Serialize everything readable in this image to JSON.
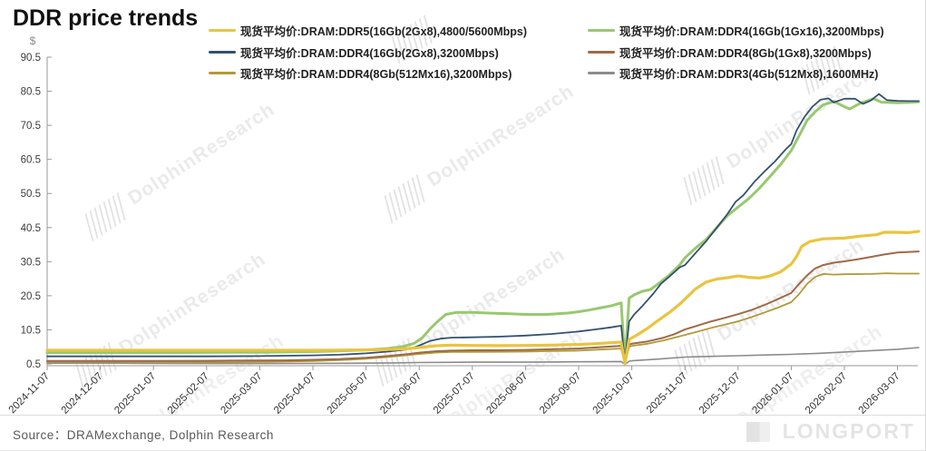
{
  "title": "DDR price trends",
  "source": "Source：DRAMexchange,  Dolphin  Research",
  "watermark": "DolphinResearch",
  "brand": "LONGPORT",
  "chart_data": {
    "type": "line",
    "title": "DDR price trends",
    "xlabel": "",
    "ylabel": "$",
    "ylim": [
      0.5,
      90.5
    ],
    "yticks": [
      0.5,
      10.5,
      20.5,
      30.5,
      40.5,
      50.5,
      60.5,
      70.5,
      80.5,
      90.5
    ],
    "grid": false,
    "legend_position": "top",
    "x_unit": "months after 2024-11-07",
    "x_tick_labels": [
      "2024-11-07",
      "2024-12-07",
      "2025-01-07",
      "2025-02-07",
      "2025-03-07",
      "2025-04-07",
      "2025-05-07",
      "2025-06-07",
      "2025-07-07",
      "2025-08-07",
      "2025-09-07",
      "2025-10-07",
      "2025-11-07",
      "2025-12-07",
      "2026-01-07",
      "2026-02-07",
      "2026-03-07"
    ],
    "series": [
      {
        "name": "现货平均价:DRAM:DDR5(16Gb(2Gx8),4800/5600Mbps)",
        "color": "#E9C43F",
        "width": 3.2,
        "points": [
          [
            0,
            4.5
          ],
          [
            1,
            4.5
          ],
          [
            2,
            4.5
          ],
          [
            3,
            4.5
          ],
          [
            4,
            4.5
          ],
          [
            5,
            4.5
          ],
          [
            5.5,
            4.55
          ],
          [
            6,
            4.6
          ],
          [
            6.5,
            4.75
          ],
          [
            6.8,
            5.0
          ],
          [
            7,
            5.3
          ],
          [
            7.3,
            5.8
          ],
          [
            7.6,
            6.0
          ],
          [
            8,
            5.9
          ],
          [
            8.5,
            5.85
          ],
          [
            9,
            5.9
          ],
          [
            9.5,
            6.0
          ],
          [
            10,
            6.2
          ],
          [
            10.4,
            6.5
          ],
          [
            10.8,
            6.9
          ],
          [
            10.87,
            0.6
          ],
          [
            10.95,
            7.7
          ],
          [
            11.1,
            9.0
          ],
          [
            11.3,
            11.0
          ],
          [
            11.5,
            13.3
          ],
          [
            11.7,
            15.5
          ],
          [
            11.9,
            18.0
          ],
          [
            12,
            19.5
          ],
          [
            12.2,
            22.5
          ],
          [
            12.4,
            24.5
          ],
          [
            12.6,
            25.4
          ],
          [
            12.8,
            25.8
          ],
          [
            13,
            26.3
          ],
          [
            13.2,
            25.9
          ],
          [
            13.4,
            25.7
          ],
          [
            13.6,
            26.3
          ],
          [
            13.8,
            27.5
          ],
          [
            14,
            29.8
          ],
          [
            14.1,
            32.0
          ],
          [
            14.2,
            35.0
          ],
          [
            14.35,
            36.4
          ],
          [
            14.6,
            37.2
          ],
          [
            15,
            37.4
          ],
          [
            15.3,
            38.0
          ],
          [
            15.6,
            38.4
          ],
          [
            15.75,
            39.1
          ],
          [
            16,
            39.1
          ],
          [
            16.2,
            39.0
          ],
          [
            16.4,
            39.4
          ]
        ]
      },
      {
        "name": "现货平均价:DRAM:DDR4(16Gb(1Gx16),3200Mbps)",
        "color": "#98C86F",
        "width": 3,
        "points": [
          [
            0,
            3.8
          ],
          [
            1,
            3.8
          ],
          [
            2,
            3.8
          ],
          [
            3,
            3.85
          ],
          [
            4,
            3.9
          ],
          [
            5,
            4.1
          ],
          [
            5.5,
            4.3
          ],
          [
            6,
            4.6
          ],
          [
            6.4,
            5.0
          ],
          [
            6.7,
            5.6
          ],
          [
            6.9,
            6.5
          ],
          [
            7.05,
            8.0
          ],
          [
            7.2,
            10.7
          ],
          [
            7.35,
            13.0
          ],
          [
            7.5,
            15.0
          ],
          [
            7.7,
            15.6
          ],
          [
            8,
            15.6
          ],
          [
            8.3,
            15.4
          ],
          [
            8.7,
            15.2
          ],
          [
            9,
            15.0
          ],
          [
            9.4,
            15.0
          ],
          [
            9.8,
            15.4
          ],
          [
            10,
            15.8
          ],
          [
            10.2,
            16.3
          ],
          [
            10.4,
            16.9
          ],
          [
            10.6,
            17.5
          ],
          [
            10.8,
            18.4
          ],
          [
            10.87,
            1.0
          ],
          [
            10.95,
            19.8
          ],
          [
            11.05,
            20.8
          ],
          [
            11.2,
            21.8
          ],
          [
            11.35,
            22.3
          ],
          [
            11.5,
            24.0
          ],
          [
            11.7,
            26.5
          ],
          [
            11.9,
            29.5
          ],
          [
            12,
            31.6
          ],
          [
            12.2,
            34.5
          ],
          [
            12.4,
            37.0
          ],
          [
            12.6,
            40.5
          ],
          [
            12.8,
            44.0
          ],
          [
            13,
            46.5
          ],
          [
            13.2,
            49.0
          ],
          [
            13.4,
            52.0
          ],
          [
            13.6,
            55.5
          ],
          [
            13.8,
            59.0
          ],
          [
            14,
            63.1
          ],
          [
            14.15,
            67.5
          ],
          [
            14.3,
            72.0
          ],
          [
            14.45,
            74.5
          ],
          [
            14.6,
            76.5
          ],
          [
            14.8,
            77.5
          ],
          [
            15,
            76.0
          ],
          [
            15.1,
            75.3
          ],
          [
            15.3,
            77.0
          ],
          [
            15.55,
            78.3
          ],
          [
            15.7,
            77.3
          ],
          [
            16,
            77.1
          ],
          [
            16.2,
            77.2
          ],
          [
            16.4,
            77.4
          ]
        ]
      },
      {
        "name": "现货平均价:DRAM:DDR4(16Gb(2Gx8),3200Mbps)",
        "color": "#33516F",
        "width": 1.8,
        "points": [
          [
            0,
            2.7
          ],
          [
            1,
            2.7
          ],
          [
            2,
            2.7
          ],
          [
            3,
            2.7
          ],
          [
            4,
            2.8
          ],
          [
            5,
            3.0
          ],
          [
            5.5,
            3.2
          ],
          [
            6,
            3.6
          ],
          [
            6.4,
            4.1
          ],
          [
            6.7,
            4.6
          ],
          [
            6.9,
            5.3
          ],
          [
            7.05,
            6.2
          ],
          [
            7.2,
            7.2
          ],
          [
            7.4,
            7.9
          ],
          [
            7.6,
            8.2
          ],
          [
            8,
            8.3
          ],
          [
            8.5,
            8.5
          ],
          [
            9,
            8.8
          ],
          [
            9.5,
            9.3
          ],
          [
            10,
            10.0
          ],
          [
            10.3,
            10.6
          ],
          [
            10.6,
            11.2
          ],
          [
            10.8,
            11.7
          ],
          [
            10.87,
            1.0
          ],
          [
            10.95,
            13.0
          ],
          [
            11.05,
            15.1
          ],
          [
            11.2,
            17.5
          ],
          [
            11.4,
            21.0
          ],
          [
            11.55,
            24.0
          ],
          [
            11.7,
            26.0
          ],
          [
            11.9,
            28.8
          ],
          [
            12,
            29.5
          ],
          [
            12.2,
            33.0
          ],
          [
            12.4,
            36.5
          ],
          [
            12.6,
            40.5
          ],
          [
            12.8,
            44.5
          ],
          [
            12.95,
            48.0
          ],
          [
            13.1,
            50.0
          ],
          [
            13.3,
            53.8
          ],
          [
            13.5,
            57.0
          ],
          [
            13.7,
            60.0
          ],
          [
            13.9,
            63.5
          ],
          [
            14,
            65.0
          ],
          [
            14.1,
            69.0
          ],
          [
            14.25,
            73.0
          ],
          [
            14.4,
            76.0
          ],
          [
            14.55,
            78.0
          ],
          [
            14.7,
            78.4
          ],
          [
            14.8,
            77.2
          ],
          [
            15,
            78.3
          ],
          [
            15.2,
            78.3
          ],
          [
            15.35,
            76.8
          ],
          [
            15.5,
            77.8
          ],
          [
            15.65,
            79.7
          ],
          [
            15.8,
            77.9
          ],
          [
            16,
            77.7
          ],
          [
            16.2,
            77.6
          ],
          [
            16.4,
            77.6
          ]
        ]
      },
      {
        "name": "现货平均价:DRAM:DDR4(8Gb(1Gx8),3200Mbps)",
        "color": "#9F6A47",
        "width": 2,
        "points": [
          [
            0,
            1.35
          ],
          [
            1,
            1.35
          ],
          [
            2,
            1.35
          ],
          [
            3,
            1.4
          ],
          [
            4,
            1.5
          ],
          [
            4.5,
            1.55
          ],
          [
            5,
            1.7
          ],
          [
            5.5,
            1.9
          ],
          [
            6,
            2.3
          ],
          [
            6.4,
            2.8
          ],
          [
            6.8,
            3.4
          ],
          [
            7,
            3.8
          ],
          [
            7.3,
            4.2
          ],
          [
            7.6,
            4.4
          ],
          [
            8,
            4.5
          ],
          [
            8.5,
            4.5
          ],
          [
            9,
            4.6
          ],
          [
            9.5,
            4.8
          ],
          [
            10,
            5.0
          ],
          [
            10.4,
            5.4
          ],
          [
            10.8,
            5.8
          ],
          [
            10.87,
            0.8
          ],
          [
            10.95,
            6.2
          ],
          [
            11,
            6.4
          ],
          [
            11.3,
            7.1
          ],
          [
            11.6,
            8.2
          ],
          [
            11.8,
            9.2
          ],
          [
            12,
            10.6
          ],
          [
            12.25,
            11.8
          ],
          [
            12.5,
            13.0
          ],
          [
            12.75,
            14.0
          ],
          [
            13,
            15.1
          ],
          [
            13.25,
            16.3
          ],
          [
            13.5,
            17.8
          ],
          [
            13.75,
            19.5
          ],
          [
            14,
            21.3
          ],
          [
            14.15,
            24.0
          ],
          [
            14.3,
            26.5
          ],
          [
            14.45,
            28.5
          ],
          [
            14.6,
            29.5
          ],
          [
            14.8,
            30.2
          ],
          [
            15,
            30.6
          ],
          [
            15.25,
            31.2
          ],
          [
            15.5,
            31.9
          ],
          [
            15.75,
            32.6
          ],
          [
            16,
            33.2
          ],
          [
            16.4,
            33.5
          ]
        ]
      },
      {
        "name": "现货平均价:DRAM:DDR4(8Gb(512Mx16),3200Mbps)",
        "color": "#AF9B3A",
        "width": 1.8,
        "points": [
          [
            0,
            1.1
          ],
          [
            1,
            1.1
          ],
          [
            2,
            1.05
          ],
          [
            3,
            1.0
          ],
          [
            3.5,
            1.0
          ],
          [
            4,
            1.1
          ],
          [
            4.5,
            1.2
          ],
          [
            5,
            1.35
          ],
          [
            5.5,
            1.6
          ],
          [
            6,
            2.0
          ],
          [
            6.4,
            2.5
          ],
          [
            6.8,
            3.1
          ],
          [
            7,
            3.4
          ],
          [
            7.3,
            3.8
          ],
          [
            7.6,
            4.0
          ],
          [
            8,
            4.0
          ],
          [
            8.5,
            4.05
          ],
          [
            9,
            4.1
          ],
          [
            9.5,
            4.25
          ],
          [
            10,
            4.4
          ],
          [
            10.4,
            4.7
          ],
          [
            10.8,
            5.0
          ],
          [
            10.87,
            0.6
          ],
          [
            10.95,
            5.5
          ],
          [
            11,
            5.8
          ],
          [
            11.3,
            6.4
          ],
          [
            11.6,
            7.4
          ],
          [
            11.8,
            8.2
          ],
          [
            12,
            9.0
          ],
          [
            12.25,
            10.0
          ],
          [
            12.5,
            11.1
          ],
          [
            12.75,
            12.0
          ],
          [
            13,
            13.0
          ],
          [
            13.25,
            14.2
          ],
          [
            13.5,
            15.6
          ],
          [
            13.75,
            17.0
          ],
          [
            14,
            18.6
          ],
          [
            14.15,
            21.0
          ],
          [
            14.3,
            24.0
          ],
          [
            14.45,
            26.0
          ],
          [
            14.6,
            26.9
          ],
          [
            14.8,
            26.7
          ],
          [
            15,
            26.8
          ],
          [
            15.5,
            26.9
          ],
          [
            15.8,
            27.1
          ],
          [
            16,
            27.0
          ],
          [
            16.4,
            27.0
          ]
        ]
      },
      {
        "name": "现货平均价:DRAM:DDR3(4Gb(512Mx8),1600MHz)",
        "color": "#8B8B8B",
        "width": 1.6,
        "points": [
          [
            0,
            0.7
          ],
          [
            1,
            0.7
          ],
          [
            2,
            0.65
          ],
          [
            3,
            0.6
          ],
          [
            4,
            0.6
          ],
          [
            5,
            0.65
          ],
          [
            6,
            0.7
          ],
          [
            6.5,
            0.8
          ],
          [
            7,
            0.9
          ],
          [
            7.5,
            0.95
          ],
          [
            8,
            1.0
          ],
          [
            9,
            1.0
          ],
          [
            9.5,
            1.05
          ],
          [
            10,
            1.1
          ],
          [
            10.5,
            1.15
          ],
          [
            10.8,
            1.2
          ],
          [
            10.87,
            0.35
          ],
          [
            10.95,
            1.3
          ],
          [
            11,
            1.4
          ],
          [
            11.5,
            1.9
          ],
          [
            12,
            2.5
          ],
          [
            12.5,
            2.7
          ],
          [
            13,
            2.9
          ],
          [
            13.5,
            3.1
          ],
          [
            14,
            3.3
          ],
          [
            14.5,
            3.6
          ],
          [
            15,
            4.0
          ],
          [
            15.5,
            4.4
          ],
          [
            16,
            4.8
          ],
          [
            16.4,
            5.3
          ]
        ]
      }
    ]
  }
}
